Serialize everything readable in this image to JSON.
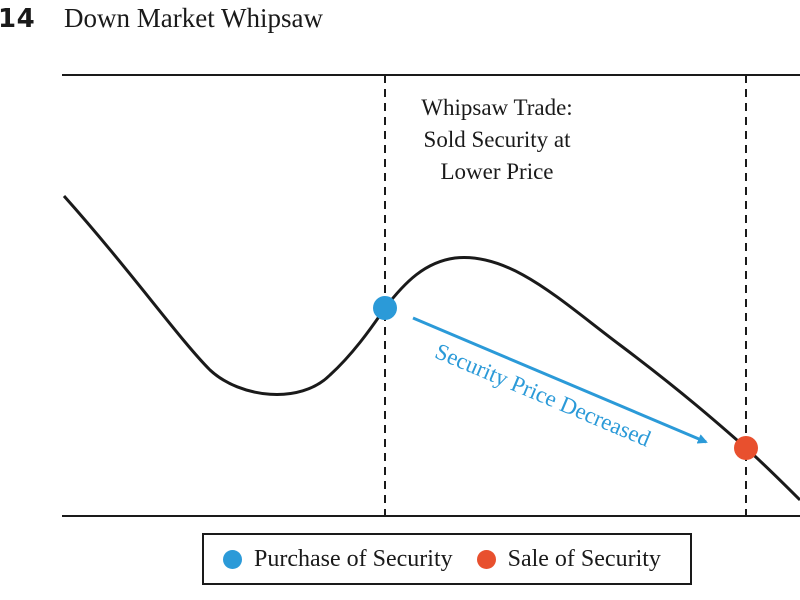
{
  "figure": {
    "number": "14",
    "title": "Down Market Whipsaw"
  },
  "annotation": {
    "whipsaw_lines": [
      "Whipsaw Trade:",
      "Sold Security at",
      "Lower Price"
    ],
    "price_arrow_label": "Security Price Decreased"
  },
  "legend": {
    "purchase_label": "Purchase of Security",
    "sale_label": "Sale of Security"
  },
  "colors": {
    "purchase": "#2b9ad8",
    "sale": "#e8502e",
    "curve": "#1a1a1a",
    "arrow": "#2b9ad8"
  },
  "events": [
    {
      "type": "purchase"
    },
    {
      "type": "sale"
    }
  ]
}
